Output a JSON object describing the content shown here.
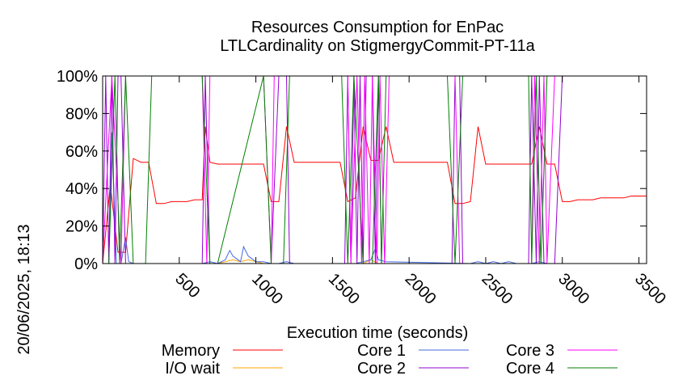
{
  "chart_data": {
    "type": "line",
    "title": "Resources Consumption for EnPac",
    "subtitle": "LTLCardinality on StigmergyCommit-PT-11a",
    "xlabel": "Execution time (seconds)",
    "ylabel": "",
    "side_label": "20/06/2025, 18:13",
    "xlim": [
      0,
      3550
    ],
    "ylim": [
      0,
      100
    ],
    "x_ticks": [
      500,
      1000,
      1500,
      2000,
      2500,
      3000,
      3500
    ],
    "x_tick_labels": [
      "500",
      "1000",
      "1500",
      "2000",
      "2500",
      "3000",
      "3500"
    ],
    "y_ticks": [
      0,
      20,
      40,
      60,
      80,
      100
    ],
    "y_tick_labels": [
      "0%",
      "20%",
      "40%",
      "60%",
      "80%",
      "100%"
    ],
    "grid": false,
    "legend_position": "bottom",
    "series": [
      {
        "name": "Memory",
        "color": "#ff0000",
        "x": [
          0,
          50,
          100,
          150,
          200,
          250,
          300,
          350,
          400,
          450,
          500,
          550,
          600,
          650,
          670,
          700,
          750,
          800,
          850,
          900,
          950,
          1000,
          1050,
          1100,
          1150,
          1200,
          1250,
          1300,
          1350,
          1400,
          1450,
          1500,
          1550,
          1600,
          1650,
          1700,
          1750,
          1800,
          1850,
          1900,
          1950,
          2000,
          2050,
          2100,
          2150,
          2200,
          2250,
          2300,
          2350,
          2400,
          2450,
          2500,
          2550,
          2600,
          2650,
          2700,
          2750,
          2800,
          2850,
          2900,
          2950,
          3000,
          3050,
          3100,
          3150,
          3200,
          3250,
          3300,
          3350,
          3400,
          3450,
          3500,
          3550
        ],
        "y": [
          0,
          42,
          6,
          6,
          56,
          54,
          54,
          32,
          32,
          33,
          33,
          33,
          34,
          34,
          73,
          54,
          53,
          53,
          53,
          53,
          53,
          53,
          53,
          33,
          33,
          73,
          54,
          54,
          54,
          54,
          54,
          54,
          54,
          33,
          35,
          73,
          55,
          55,
          73,
          54,
          54,
          54,
          54,
          54,
          54,
          54,
          54,
          32,
          32,
          33,
          73,
          53,
          53,
          53,
          53,
          53,
          53,
          53,
          73,
          53,
          53,
          33,
          33,
          34,
          34,
          34,
          35,
          35,
          35,
          35,
          36,
          36,
          36
        ]
      },
      {
        "name": "I/O wait",
        "color": "#ffa500",
        "x": [
          0,
          50,
          100,
          150,
          200,
          700,
          750,
          800,
          850,
          900,
          950,
          1000,
          1050,
          1700,
          1750,
          1800,
          1850,
          3550
        ],
        "y": [
          0,
          0,
          0,
          0,
          0,
          0,
          0,
          1,
          2,
          1,
          2,
          1,
          0,
          0,
          2,
          0,
          0,
          0
        ]
      },
      {
        "name": "Core 1",
        "color": "#4169e1",
        "x": [
          0,
          40,
          60,
          90,
          120,
          150,
          170,
          200,
          650,
          700,
          750,
          800,
          830,
          850,
          900,
          920,
          950,
          1000,
          1050,
          1100,
          1150,
          1200,
          1250,
          1650,
          1700,
          1750,
          1780,
          1800,
          1850,
          2400,
          2450,
          2500,
          2550,
          2600,
          2650,
          2700,
          2800,
          2850,
          2900,
          3550
        ],
        "y": [
          0,
          0,
          70,
          0,
          0,
          14,
          1,
          0,
          0,
          1,
          0,
          2,
          7,
          4,
          1,
          9,
          4,
          1,
          1,
          0,
          0,
          1,
          0,
          0,
          1,
          2,
          8,
          2,
          1,
          0,
          1,
          0,
          1,
          0,
          1,
          0,
          0,
          1,
          0,
          0
        ]
      },
      {
        "name": "Core 2",
        "color": "#9400d3",
        "x": [
          0,
          20,
          40,
          60,
          80,
          100,
          120,
          150,
          200,
          650,
          670,
          700,
          720,
          1100,
          1150,
          1200,
          1220,
          1580,
          1600,
          1620,
          1640,
          1660,
          1680,
          1700,
          1720,
          1760,
          1780,
          1800,
          1820,
          1840,
          2280,
          2300,
          2330,
          2350,
          2780,
          2800,
          2830,
          2850,
          2880,
          2900,
          2950,
          3000,
          3550
        ],
        "y": [
          0,
          100,
          0,
          100,
          0,
          100,
          100,
          0,
          0,
          0,
          100,
          0,
          0,
          0,
          100,
          100,
          0,
          0,
          100,
          0,
          100,
          0,
          100,
          0,
          100,
          100,
          0,
          100,
          0,
          0,
          0,
          100,
          100,
          0,
          0,
          100,
          0,
          100,
          0,
          0,
          0,
          100,
          100
        ]
      },
      {
        "name": "Core 3",
        "color": "#ff00ff",
        "x": [
          0,
          60,
          120,
          150,
          200,
          650,
          680,
          700,
          1050,
          1100,
          1120,
          1180,
          1600,
          1620,
          1660,
          1690,
          1710,
          1740,
          1760,
          1790,
          1810,
          1840,
          1870,
          2300,
          2330,
          2800,
          2820,
          2850,
          2880,
          2900,
          2950,
          3550
        ],
        "y": [
          0,
          100,
          0,
          100,
          100,
          100,
          0,
          100,
          100,
          0,
          100,
          100,
          100,
          0,
          100,
          0,
          100,
          0,
          100,
          0,
          100,
          0,
          100,
          100,
          0,
          0,
          100,
          0,
          100,
          0,
          100,
          100
        ]
      },
      {
        "name": "Core 4",
        "color": "#008000",
        "x": [
          0,
          40,
          80,
          110,
          150,
          200,
          280,
          320,
          650,
          700,
          750,
          1050,
          1100,
          1180,
          1220,
          1560,
          1600,
          1640,
          1700,
          1760,
          1800,
          1820,
          1850,
          1900,
          2250,
          2300,
          2350,
          2780,
          2800,
          2830,
          2860,
          2900,
          3550
        ],
        "y": [
          0,
          0,
          100,
          0,
          100,
          0,
          0,
          100,
          100,
          0,
          0,
          100,
          0,
          0,
          100,
          100,
          0,
          100,
          0,
          0,
          100,
          0,
          100,
          100,
          100,
          0,
          100,
          100,
          0,
          100,
          0,
          100,
          100
        ]
      }
    ]
  }
}
